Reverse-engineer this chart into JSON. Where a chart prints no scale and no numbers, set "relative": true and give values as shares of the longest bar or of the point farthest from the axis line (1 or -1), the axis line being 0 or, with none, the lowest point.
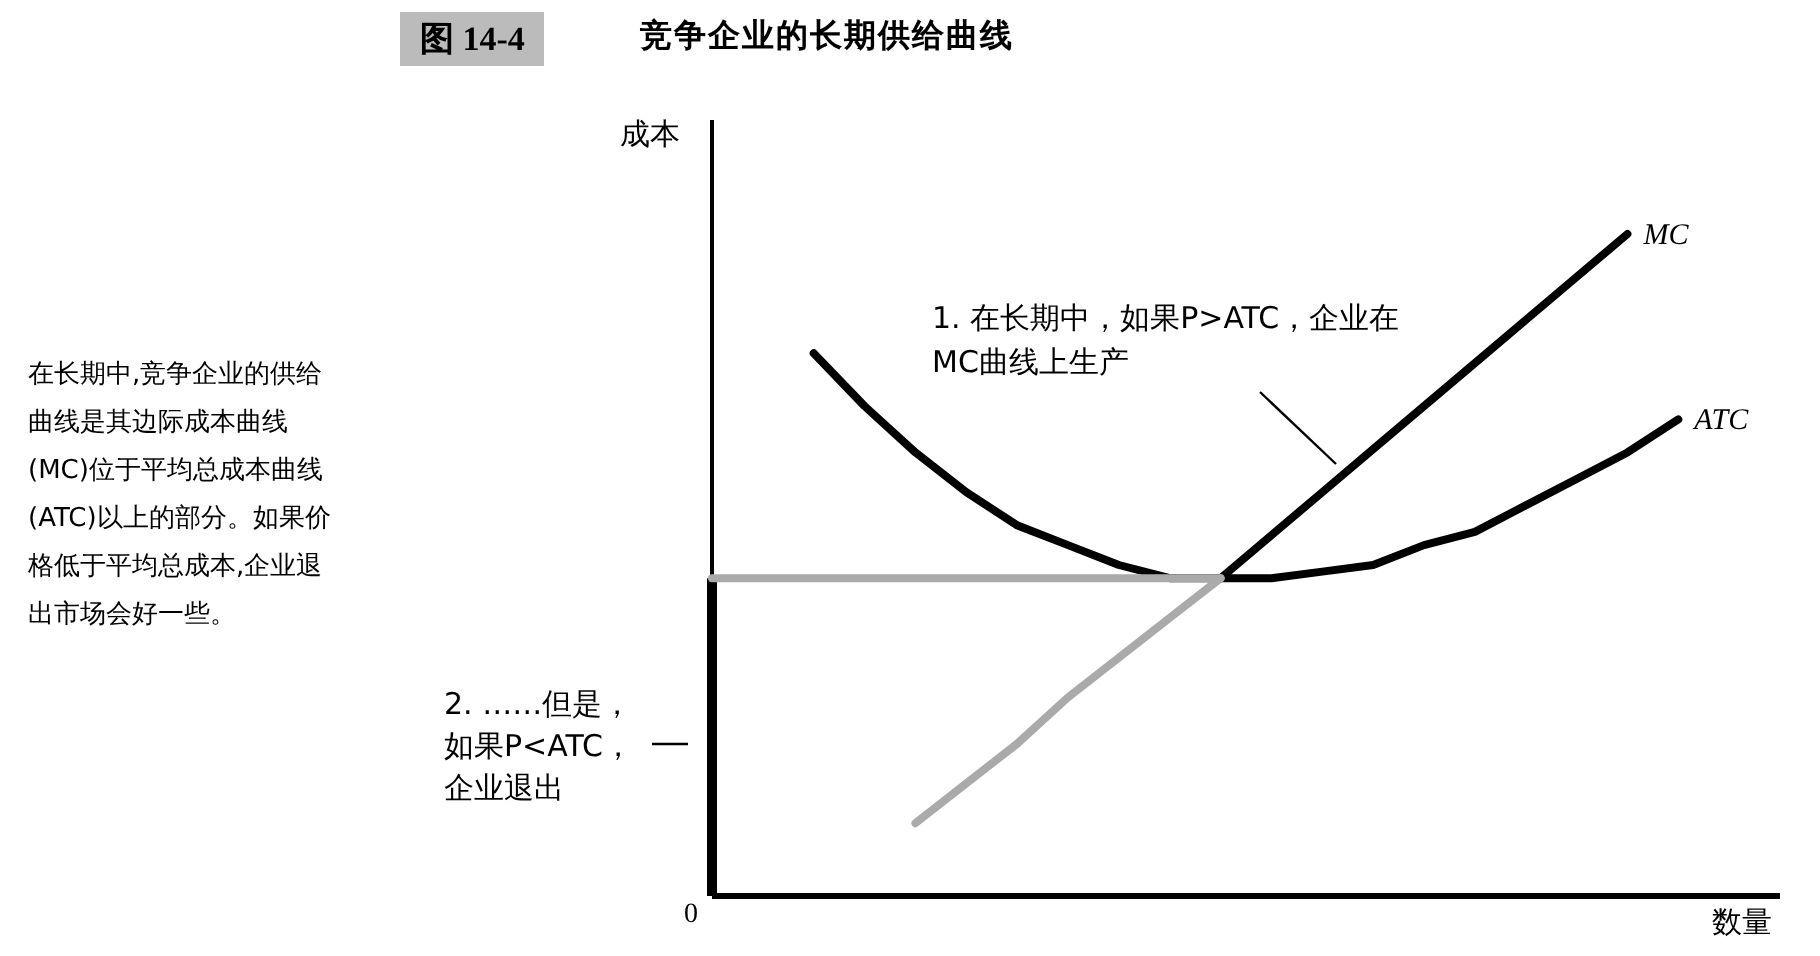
{
  "chart_data": {
    "type": "line",
    "title": "图 14-4",
    "subtitle": "竞争企业的长期供给曲线",
    "xlabel": "数量",
    "ylabel": "成本",
    "relative": true,
    "categories": [
      null,
      null,
      null,
      null,
      null,
      null,
      null,
      null,
      null,
      null,
      null,
      null,
      null,
      null,
      null,
      null,
      null,
      null,
      null,
      null,
      null,
      null
    ],
    "annotations": [
      "1. 在长期中，如果P>ATC，企业在MC曲线上生产",
      "2. ……但是，如果P<ATC，企业退出",
      "0",
      "在长期中,竞争企业的供给曲线是其边际成本曲线(MC)位于平均总成本曲线(ATC)以上的部分。如果价格低于平均总成本,企业退出市场会好一些。"
    ],
    "series": [
      {
        "name": "ATC",
        "color": "#000000",
        "values": [
          null,
          null,
          0.82,
          0.74,
          0.67,
          0.61,
          0.56,
          0.53,
          0.5,
          0.48,
          0.48,
          0.48,
          0.49,
          0.5,
          0.53,
          0.55,
          0.59,
          0.63,
          0.67,
          0.72,
          null,
          null
        ]
      },
      {
        "name": "MC",
        "color": "#000000",
        "values": [
          null,
          null,
          null,
          null,
          null,
          null,
          null,
          null,
          null,
          null,
          0.48,
          0.545,
          0.61,
          0.675,
          0.74,
          0.805,
          0.87,
          0.935,
          1.0,
          null,
          null,
          null
        ]
      },
      {
        "color": "#aaaaaa",
        "values": [
          null,
          null,
          null,
          null,
          0.11,
          0.17,
          0.23,
          0.3,
          0.36,
          0.42,
          0.48,
          null,
          null,
          null,
          null,
          null,
          null,
          null,
          null,
          null,
          null,
          null
        ]
      },
      {
        "color": "#aaaaaa",
        "values": [
          0.48,
          0.48,
          0.48,
          0.48,
          0.48,
          0.48,
          0.48,
          0.48,
          0.48,
          0.48,
          0.48,
          null,
          null,
          null,
          null,
          null,
          null,
          null,
          null,
          null,
          null,
          null
        ]
      }
    ]
  }
}
